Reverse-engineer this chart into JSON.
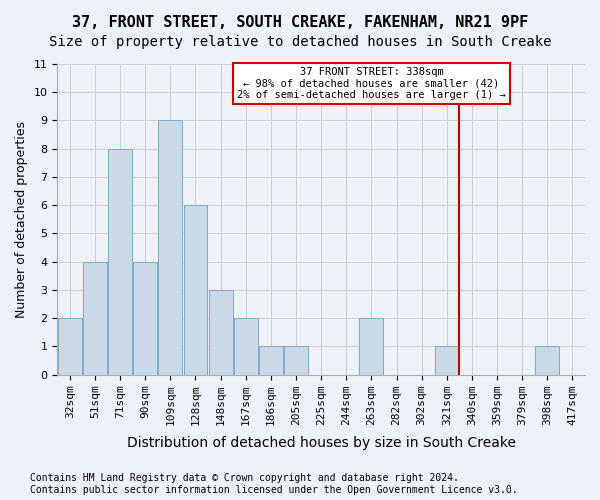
{
  "title1": "37, FRONT STREET, SOUTH CREAKE, FAKENHAM, NR21 9PF",
  "title2": "Size of property relative to detached houses in South Creake",
  "xlabel": "Distribution of detached houses by size in South Creake",
  "ylabel": "Number of detached properties",
  "bar_labels": [
    "32sqm",
    "51sqm",
    "71sqm",
    "90sqm",
    "109sqm",
    "128sqm",
    "148sqm",
    "167sqm",
    "186sqm",
    "205sqm",
    "225sqm",
    "244sqm",
    "263sqm",
    "282sqm",
    "302sqm",
    "321sqm",
    "340sqm",
    "359sqm",
    "379sqm",
    "398sqm",
    "417sqm"
  ],
  "bar_values": [
    2,
    4,
    8,
    4,
    9,
    6,
    3,
    2,
    1,
    1,
    0,
    0,
    2,
    0,
    0,
    1,
    0,
    0,
    0,
    1,
    0
  ],
  "bar_color": "#c9d9e8",
  "bar_edge_color": "#7aaac8",
  "background_color": "#eef2f8",
  "grid_color": "#cccccc",
  "annotation_line1": "37 FRONT STREET: 338sqm",
  "annotation_line2": "← 98% of detached houses are smaller (42)",
  "annotation_line3": "2% of semi-detached houses are larger (1) →",
  "annotation_box_color": "#cc0000",
  "vline_x": 15.5,
  "vline_color": "#cc0000",
  "ylim": [
    0,
    11
  ],
  "yticks": [
    0,
    1,
    2,
    3,
    4,
    5,
    6,
    7,
    8,
    9,
    10,
    11
  ],
  "footnote": "Contains HM Land Registry data © Crown copyright and database right 2024.\nContains public sector information licensed under the Open Government Licence v3.0.",
  "title1_fontsize": 11,
  "title2_fontsize": 10,
  "xlabel_fontsize": 10,
  "ylabel_fontsize": 9,
  "tick_fontsize": 8,
  "footnote_fontsize": 7
}
